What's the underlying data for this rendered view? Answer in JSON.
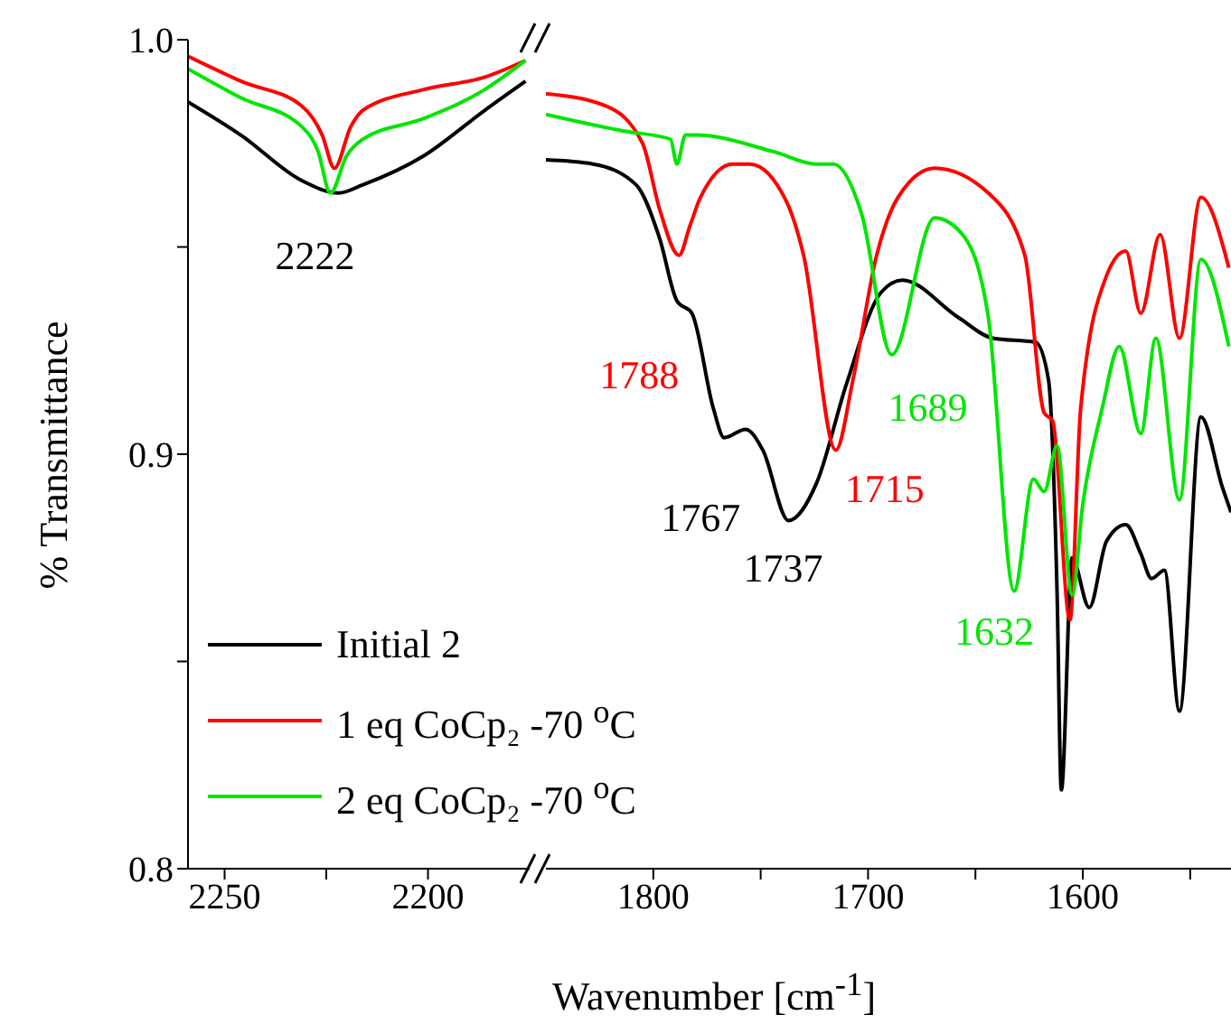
{
  "chart_data": [
    {
      "type": "line",
      "ylabel": "% Transmittance",
      "xlabel": "Wavenumber [cm$^{-1}$]",
      "legend": "bottom",
      "xlim": [
        2259,
        2175
      ],
      "xticks": [
        2250,
        {
          "value": 2225,
          "label": null
        },
        2200
      ],
      "ylim": [
        0.8,
        1.0
      ],
      "yticks": [
        0.8,
        {
          "value": 0.85,
          "label": null
        },
        0.9,
        {
          "value": 0.95,
          "label": null
        },
        {
          "value": 1.0,
          "label": "1.0"
        }
      ],
      "series": [
        {
          "name": "Initial 2",
          "color": "#000000",
          "x": [
            2259,
            2246,
            2231,
            2222,
            2216,
            2201,
            2186,
            2176
          ],
          "values": [
            0.985,
            0.977,
            0.966,
            0.963,
            0.965,
            0.972,
            0.983,
            0.99
          ]
        },
        {
          "name": "1 eq CoCp₂ -70 $^{o}$C",
          "color": "#ff0000",
          "x": [
            2259,
            2246,
            2231,
            2226,
            2223,
            2219,
            2216,
            2201,
            2186,
            2176
          ],
          "values": [
            0.996,
            0.99,
            0.984,
            0.977,
            0.969,
            0.979,
            0.983,
            0.988,
            0.991,
            0.995
          ]
        },
        {
          "name": "2 eq CoCp₂ -70 $^{o}$C",
          "color": "#00e600",
          "x": [
            2259,
            2246,
            2231,
            2227,
            2224,
            2220,
            2216,
            2201,
            2186,
            2176
          ],
          "values": [
            0.993,
            0.986,
            0.979,
            0.973,
            0.963,
            0.972,
            0.976,
            0.981,
            0.988,
            0.995
          ]
        }
      ],
      "annotations": [
        {
          "text": "2222",
          "x": 2222,
          "y": 0.963
        }
      ]
    },
    {
      "type": "line",
      "tick_labels": "x",
      "xlim": [
        1850,
        1531
      ],
      "xticks": [
        1800,
        {
          "value": 1750,
          "label": null
        },
        1700,
        {
          "value": 1650,
          "label": null
        },
        1600,
        {
          "value": 1550,
          "label": null
        }
      ],
      "ylim": [
        0.8,
        1.0
      ],
      "series": [
        {
          "color": "#000000",
          "x": [
            1850,
            1828,
            1808,
            1797,
            1789,
            1782,
            1772,
            1767,
            1757,
            1749,
            1737,
            1724,
            1710,
            1694,
            1684,
            1658,
            1642,
            1622,
            1616,
            1612,
            1610,
            1605,
            1597,
            1589,
            1580,
            1573,
            1568,
            1562,
            1555,
            1545,
            1535,
            1531
          ],
          "values": [
            0.971,
            0.97,
            0.965,
            0.952,
            0.937,
            0.934,
            0.911,
            0.904,
            0.906,
            0.901,
            0.884,
            0.893,
            0.917,
            0.939,
            0.942,
            0.933,
            0.928,
            0.927,
            0.918,
            0.867,
            0.819,
            0.875,
            0.863,
            0.879,
            0.883,
            0.876,
            0.87,
            0.872,
            0.838,
            0.909,
            0.892,
            0.886
          ]
        },
        {
          "color": "#ff0000",
          "x": [
            1850,
            1822,
            1805,
            1797,
            1788,
            1783,
            1778,
            1763,
            1755,
            1738,
            1730,
            1715,
            1707,
            1696,
            1686,
            1669,
            1644,
            1627,
            1618,
            1614,
            1606,
            1601,
            1589,
            1580,
            1573,
            1564,
            1555,
            1545,
            1532
          ],
          "values": [
            0.987,
            0.984,
            0.975,
            0.959,
            0.948,
            0.955,
            0.962,
            0.97,
            0.97,
            0.961,
            0.948,
            0.901,
            0.918,
            0.948,
            0.962,
            0.969,
            0.963,
            0.948,
            0.91,
            0.908,
            0.86,
            0.911,
            0.943,
            0.949,
            0.934,
            0.953,
            0.928,
            0.962,
            0.945
          ]
        },
        {
          "color": "#00e600",
          "x": [
            1850,
            1814,
            1792,
            1789,
            1785,
            1780,
            1744,
            1724,
            1716,
            1703,
            1689,
            1669,
            1656,
            1644,
            1632,
            1623,
            1618,
            1612,
            1605,
            1600,
            1591,
            1583,
            1573,
            1566,
            1555,
            1545,
            1532
          ],
          "values": [
            0.982,
            0.978,
            0.976,
            0.97,
            0.977,
            0.977,
            0.973,
            0.97,
            0.97,
            0.958,
            0.924,
            0.957,
            0.953,
            0.933,
            0.867,
            0.894,
            0.891,
            0.902,
            0.866,
            0.888,
            0.911,
            0.926,
            0.905,
            0.928,
            0.889,
            0.947,
            0.926
          ]
        }
      ],
      "annotations": [
        {
          "text": "1788",
          "x": 1788,
          "y": 0.948
        },
        {
          "text": "1767",
          "x": 1767,
          "y": 0.904
        },
        {
          "text": "1737",
          "x": 1737,
          "y": 0.884
        },
        {
          "text": "1715",
          "x": 1715,
          "y": 0.901
        },
        {
          "text": "1689",
          "x": 1689,
          "y": 0.924
        },
        {
          "text": "1632",
          "x": 1632,
          "y": 0.867
        }
      ]
    }
  ]
}
